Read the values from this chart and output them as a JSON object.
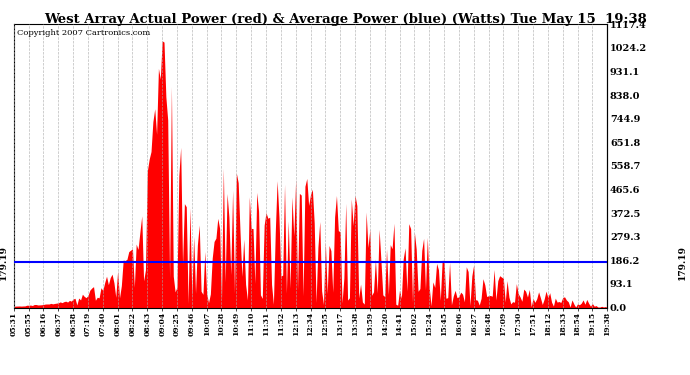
{
  "title": "West Array Actual Power (red) & Average Power (blue) (Watts) Tue May 15  19:38",
  "copyright_text": "Copyright 2007 Cartronics.com",
  "average_power": 179.19,
  "y_ticks": [
    0.0,
    93.1,
    186.2,
    279.3,
    372.5,
    465.6,
    558.7,
    651.8,
    744.9,
    838.0,
    931.1,
    1024.2,
    1117.4
  ],
  "y_max": 1117.4,
  "background_color": "#ffffff",
  "plot_bg_color": "#ffffff",
  "grid_color": "#aaaaaa",
  "fill_color": "#ff0000",
  "line_color": "#0000ff",
  "x_labels": [
    "05:31",
    "05:55",
    "06:16",
    "06:37",
    "06:58",
    "07:19",
    "07:40",
    "08:01",
    "08:22",
    "08:43",
    "09:04",
    "09:25",
    "09:46",
    "10:07",
    "10:28",
    "10:49",
    "11:10",
    "11:31",
    "11:52",
    "12:13",
    "12:34",
    "12:55",
    "13:17",
    "13:38",
    "13:59",
    "14:20",
    "14:41",
    "15:02",
    "15:24",
    "15:45",
    "16:06",
    "16:27",
    "16:48",
    "17:09",
    "17:30",
    "17:51",
    "18:12",
    "18:33",
    "18:54",
    "19:15",
    "19:38"
  ],
  "power_envelope": [
    5,
    10,
    15,
    22,
    35,
    70,
    110,
    170,
    300,
    550,
    1117,
    830,
    480,
    260,
    590,
    560,
    510,
    460,
    530,
    510,
    540,
    380,
    470,
    510,
    420,
    280,
    390,
    330,
    300,
    240,
    170,
    200,
    160,
    180,
    130,
    110,
    90,
    70,
    60,
    40,
    5
  ]
}
